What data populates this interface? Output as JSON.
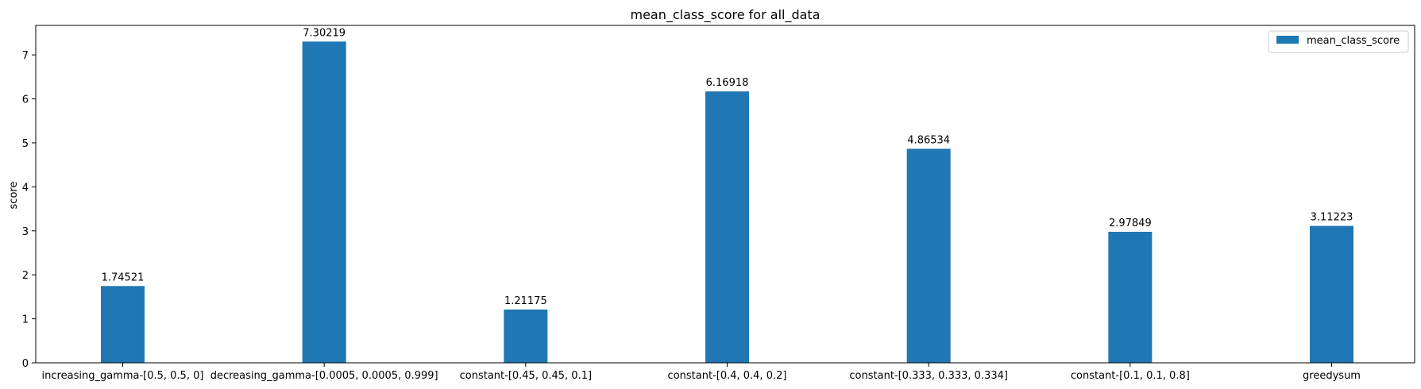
{
  "chart_data": {
    "type": "bar",
    "title": "mean_class_score for all_data",
    "xlabel": "",
    "ylabel": "score",
    "ylim": [
      0,
      7.67
    ],
    "yticks": [
      0,
      1,
      2,
      3,
      4,
      5,
      6,
      7
    ],
    "grid": false,
    "legend_position": "top-right",
    "categories": [
      "increasing_gamma-[0.5, 0.5, 0]",
      "decreasing_gamma-[0.0005, 0.0005, 0.999]",
      "constant-[0.45, 0.45, 0.1]",
      "constant-[0.4, 0.4, 0.2]",
      "constant-[0.333, 0.333, 0.334]",
      "constant-[0.1, 0.1, 0.8]",
      "greedysum"
    ],
    "series": [
      {
        "name": "mean_class_score",
        "color": "#1f77b4",
        "values": [
          1.74521,
          7.30219,
          1.21175,
          6.16918,
          4.86534,
          2.97849,
          3.11223
        ],
        "labels": [
          "1.74521",
          "7.30219",
          "1.21175",
          "6.16918",
          "4.86534",
          "2.97849",
          "3.11223"
        ]
      }
    ]
  }
}
